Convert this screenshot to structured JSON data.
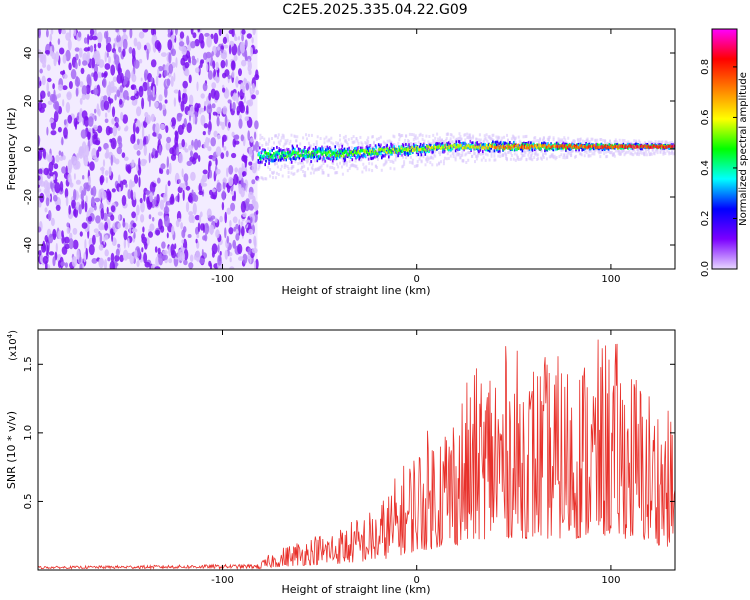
{
  "title": "C2E5.2025.335.04.22.G09",
  "chart_data": [
    {
      "type": "heatmap",
      "xlabel": "Height of straight line (km)",
      "ylabel": "Frequency (Hz)",
      "xlim": [
        -195,
        133
      ],
      "ylim": [
        -50,
        50
      ],
      "xticks": [
        -100,
        0,
        100
      ],
      "yticks": [
        -40,
        -20,
        0,
        20,
        40
      ],
      "noise_region": {
        "x": [
          -195,
          -82
        ],
        "y": [
          -50,
          50
        ]
      },
      "signal_track": [
        {
          "x": -82,
          "y": -3
        },
        {
          "x": -60,
          "y": -2
        },
        {
          "x": -40,
          "y": -2
        },
        {
          "x": -20,
          "y": -1
        },
        {
          "x": 0,
          "y": 0
        },
        {
          "x": 20,
          "y": 1
        },
        {
          "x": 40,
          "y": 1
        },
        {
          "x": 60,
          "y": 1
        },
        {
          "x": 80,
          "y": 1
        },
        {
          "x": 100,
          "y": 1
        },
        {
          "x": 120,
          "y": 1
        },
        {
          "x": 133,
          "y": 1
        }
      ],
      "colorbar": {
        "label": "Normalized spectral amplitude",
        "range": [
          0,
          0.95
        ],
        "ticks": [
          "0.0",
          "0.2",
          "0.4",
          "0.6",
          "0.8"
        ],
        "tick_values": [
          0,
          0.2,
          0.4,
          0.6,
          0.8
        ],
        "colors": [
          "#e8d8ff",
          "#7b00ff",
          "#0000ff",
          "#00ffff",
          "#00ff00",
          "#ffff00",
          "#ff8000",
          "#ff0000",
          "#ff00ff"
        ]
      }
    },
    {
      "type": "line",
      "xlabel": "Height of straight line (km)",
      "ylabel": "SNR (10 * v/v)",
      "multiplier": "(x10",
      "multiplier_exp": "4",
      "multiplier_close": ")",
      "xlim": [
        -195,
        133
      ],
      "ylim": [
        0,
        1.75
      ],
      "xticks": [
        -100,
        0,
        100
      ],
      "yticks": [
        "0.5",
        "1.0",
        "1.5"
      ],
      "ytick_values": [
        0.5,
        1.0,
        1.5
      ],
      "color": "#e8302a",
      "envelope": [
        {
          "x": -195,
          "y": 0.02
        },
        {
          "x": -82,
          "y": 0.04
        },
        {
          "x": -75,
          "y": 0.12
        },
        {
          "x": -60,
          "y": 0.22
        },
        {
          "x": -40,
          "y": 0.3
        },
        {
          "x": -20,
          "y": 0.45
        },
        {
          "x": 0,
          "y": 0.9
        },
        {
          "x": 20,
          "y": 1.2
        },
        {
          "x": 40,
          "y": 1.6
        },
        {
          "x": 60,
          "y": 1.5
        },
        {
          "x": 80,
          "y": 1.5
        },
        {
          "x": 100,
          "y": 1.65
        },
        {
          "x": 120,
          "y": 1.3
        },
        {
          "x": 133,
          "y": 1.05
        }
      ]
    }
  ]
}
